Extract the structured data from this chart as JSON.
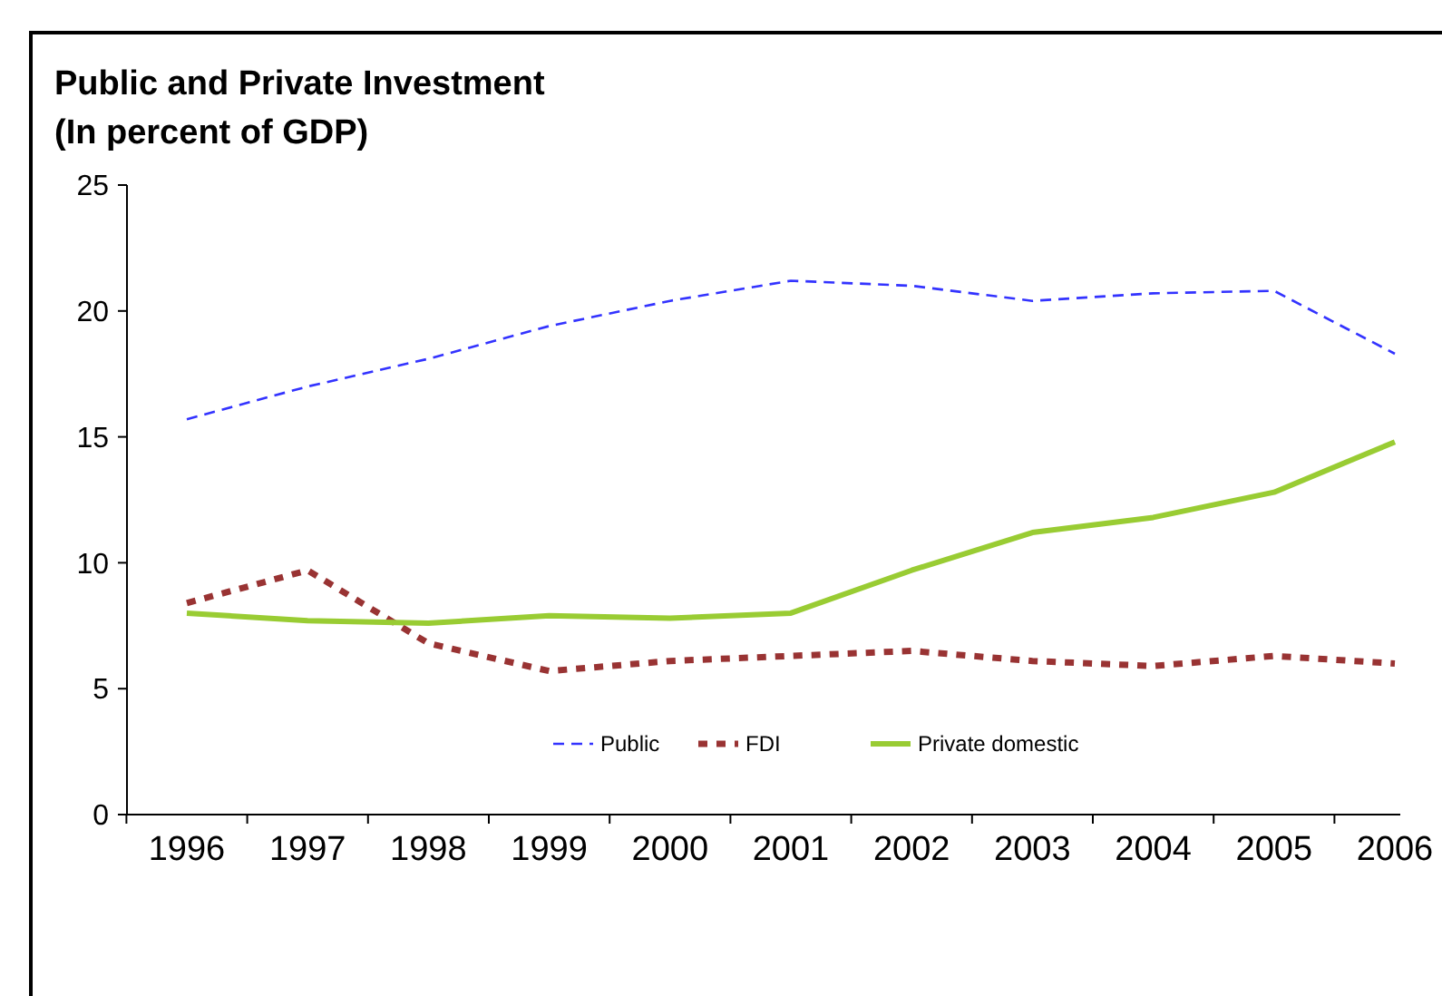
{
  "chart_data": {
    "type": "line",
    "title": "Public and Private Investment",
    "subtitle": "(In percent of GDP)",
    "categories": [
      "1996",
      "1997",
      "1998",
      "1999",
      "2000",
      "2001",
      "2002",
      "2003",
      "2004",
      "2005",
      "2006"
    ],
    "series": [
      {
        "name": "Public",
        "color": "#3333ff",
        "line_style": "dashed",
        "values": [
          15.7,
          17.0,
          18.1,
          19.4,
          20.4,
          21.2,
          21.0,
          20.4,
          20.7,
          20.8,
          18.3
        ]
      },
      {
        "name": "FDI",
        "color": "#993333",
        "line_style": "dotted",
        "values": [
          8.4,
          9.7,
          6.8,
          5.7,
          6.1,
          6.3,
          6.5,
          6.1,
          5.9,
          6.3,
          6.0
        ]
      },
      {
        "name": "Private domestic",
        "color": "#99cc33",
        "line_style": "solid",
        "values": [
          8.0,
          7.7,
          7.6,
          7.9,
          7.8,
          8.0,
          9.7,
          11.2,
          11.8,
          12.8,
          14.8
        ]
      }
    ],
    "ylim": [
      0,
      25
    ],
    "yticks": [
      0,
      5,
      10,
      15,
      20,
      25
    ],
    "grid": false,
    "legend": "bottom",
    "marker": "none"
  }
}
